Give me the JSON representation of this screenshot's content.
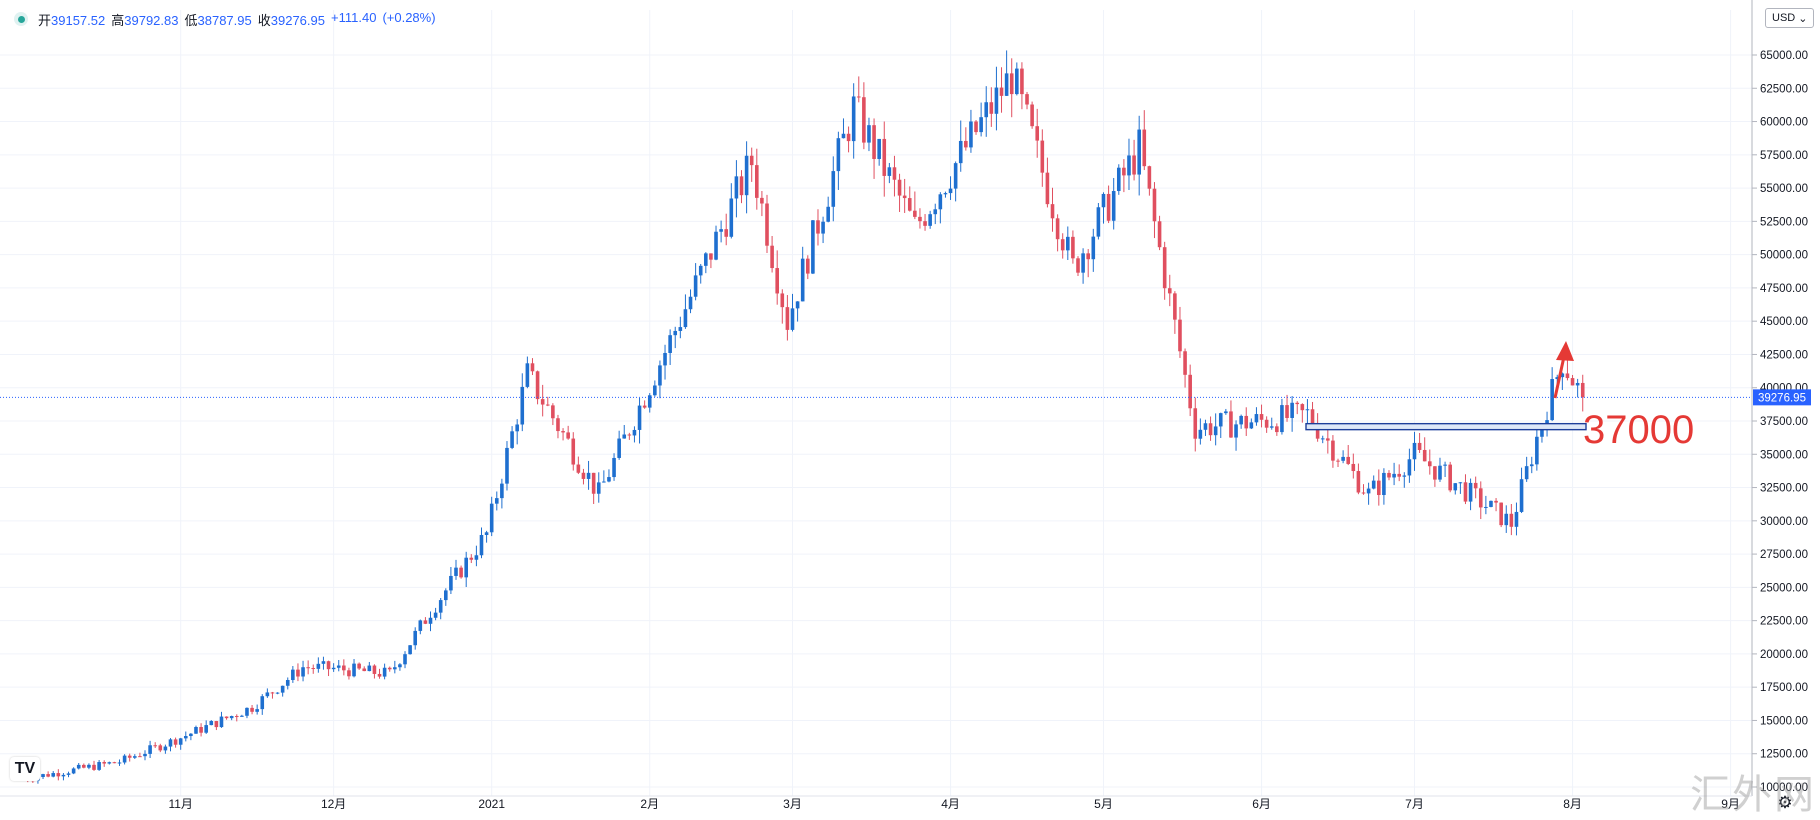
{
  "header": {
    "open_label": "开",
    "open": "39157.52",
    "high_label": "高",
    "high": "39792.83",
    "low_label": "低",
    "low": "38787.95",
    "close_label": "收",
    "close": "39276.95",
    "change": "+111.40",
    "change_pct": "(+0.28%)"
  },
  "currency": {
    "label": "USD",
    "icon": "chevron-down-icon"
  },
  "last_price_label": "39276.95",
  "annotation": {
    "text": "37000",
    "color": "#e53935"
  },
  "watermark": "汇外网",
  "logo_text": "TV",
  "colors": {
    "up": "#1e6fcf",
    "down": "#e04f5f",
    "grid": "#f0f3fa",
    "price_line": "#2962ff",
    "support": "#1c3d9a"
  },
  "chart_data": {
    "type": "candlestick",
    "y_axis": {
      "range": [
        10000,
        66500
      ],
      "ticks": [
        10000,
        12500,
        15000,
        17500,
        20000,
        22500,
        25000,
        27500,
        30000,
        32500,
        35000,
        37500,
        40000,
        42500,
        45000,
        47500,
        50000,
        52500,
        55000,
        57500,
        60000,
        62500,
        65000
      ],
      "tick_format": "2dp"
    },
    "x_axis": {
      "labels": [
        "11月",
        "12月",
        "2021",
        "2月",
        "3月",
        "4月",
        "5月",
        "6月",
        "7月",
        "8月",
        "9月"
      ]
    },
    "last_price": 39276.95,
    "support_level": 37000,
    "series": [
      {
        "date": "2020-10-01",
        "close": 10600
      },
      {
        "date": "2020-10-20",
        "close": 11900
      },
      {
        "date": "2020-11-01",
        "close": 13700
      },
      {
        "date": "2020-11-15",
        "close": 16000
      },
      {
        "date": "2020-11-25",
        "close": 19000
      },
      {
        "date": "2020-12-01",
        "close": 18900
      },
      {
        "date": "2020-12-12",
        "close": 18500
      },
      {
        "date": "2020-12-20",
        "close": 23200
      },
      {
        "date": "2020-12-31",
        "close": 29000
      },
      {
        "date": "2021-01-08",
        "close": 41000
      },
      {
        "date": "2021-01-22",
        "close": 32000
      },
      {
        "date": "2021-02-08",
        "close": 46000
      },
      {
        "date": "2021-02-21",
        "close": 57000
      },
      {
        "date": "2021-02-28",
        "close": 45000
      },
      {
        "date": "2021-03-13",
        "close": 61000
      },
      {
        "date": "2021-03-25",
        "close": 52000
      },
      {
        "date": "2021-04-13",
        "close": 63500
      },
      {
        "date": "2021-04-25",
        "close": 49000
      },
      {
        "date": "2021-05-08",
        "close": 58000
      },
      {
        "date": "2021-05-19",
        "close": 37000
      },
      {
        "date": "2021-06-01",
        "close": 37500
      },
      {
        "date": "2021-06-10",
        "close": 38000
      },
      {
        "date": "2021-06-22",
        "close": 32000
      },
      {
        "date": "2021-07-01",
        "close": 35000
      },
      {
        "date": "2021-07-20",
        "close": 29800
      },
      {
        "date": "2021-07-26",
        "close": 37500
      },
      {
        "date": "2021-07-30",
        "close": 42000
      },
      {
        "date": "2021-08-03",
        "close": 39276.95
      }
    ]
  }
}
